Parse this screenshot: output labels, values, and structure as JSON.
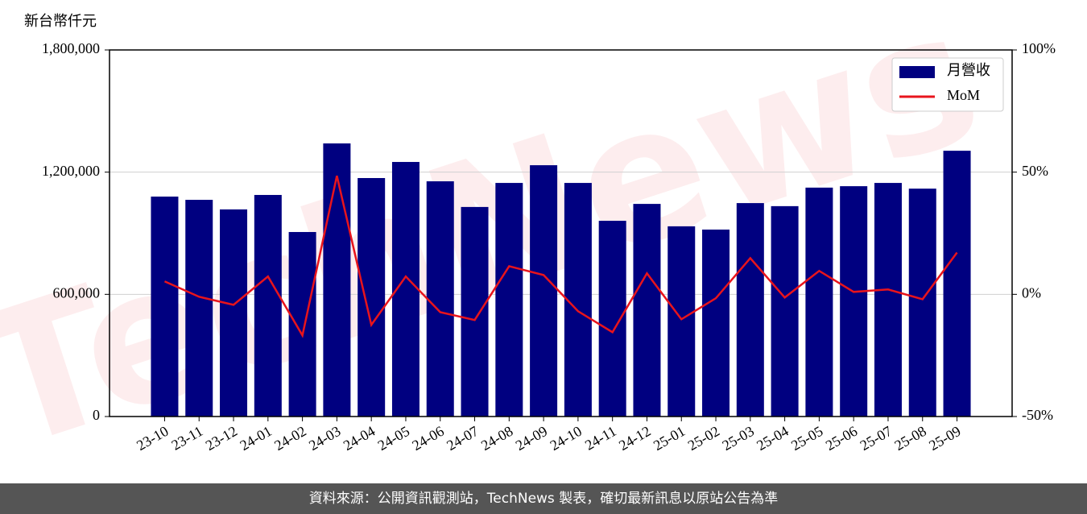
{
  "chart_data": {
    "type": "bar_line",
    "ylabel": "新台幣仟元",
    "watermark": "TechNews",
    "source": "資料來源：公開資訊觀測站，TechNews 製表，確切最新訊息以原站公告為準",
    "categories": [
      "23-10",
      "23-11",
      "23-12",
      "24-01",
      "24-02",
      "24-03",
      "24-04",
      "24-05",
      "24-06",
      "24-07",
      "24-08",
      "24-09",
      "24-10",
      "24-11",
      "24-12",
      "25-01",
      "25-02",
      "25-03",
      "25-04",
      "25-05",
      "25-06",
      "25-07",
      "25-08",
      "25-09"
    ],
    "series": [
      {
        "name": "月營收",
        "color": "#000080",
        "kind": "bar",
        "values": [
          1080000,
          1064000,
          1017000,
          1088000,
          906000,
          1341000,
          1171000,
          1250000,
          1155000,
          1029000,
          1147000,
          1234000,
          1147000,
          961000,
          1044000,
          934000,
          918000,
          1048000,
          1033000,
          1124000,
          1131000,
          1147000,
          1119000,
          1305000
        ]
      },
      {
        "name": "MoM",
        "color": "#e8141c",
        "kind": "line",
        "axis": "y2",
        "values": [
          5.3,
          -1.0,
          -4.3,
          7.3,
          -16.8,
          48.5,
          -12.5,
          7.3,
          -7.3,
          -10.5,
          11.5,
          7.9,
          -6.9,
          -15.5,
          8.6,
          -10.2,
          -1.6,
          14.8,
          -1.3,
          9.6,
          1.0,
          2.0,
          -2.0,
          17.1
        ]
      }
    ],
    "ylim": [
      0,
      1800000
    ],
    "yticks": [
      0,
      {
        "value": 600000,
        "label": "600,000"
      },
      {
        "value": 1200000,
        "label": "1,200,000"
      },
      {
        "value": 1800000,
        "label": "1,800,000"
      }
    ],
    "y2lim": [
      -50,
      100
    ],
    "y2ticks": [
      {
        "value": -50,
        "label": "-50%"
      },
      {
        "value": 0,
        "label": "0%"
      },
      {
        "value": 50,
        "label": "50%"
      },
      {
        "value": 100,
        "label": "100%"
      }
    ],
    "grid": true,
    "legend": "upper right"
  }
}
